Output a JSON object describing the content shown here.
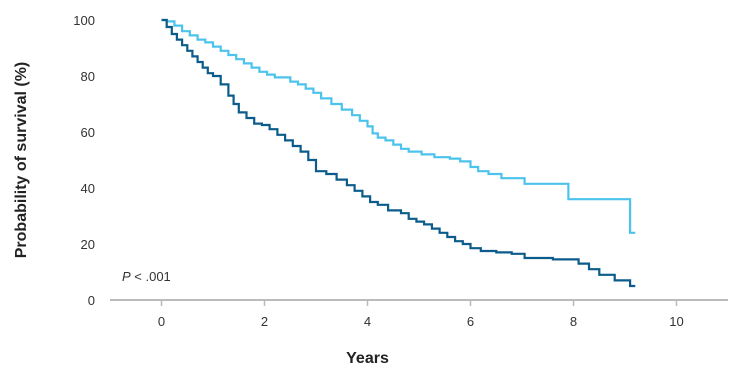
{
  "chart_data": {
    "type": "line",
    "xlabel": "Years",
    "ylabel": "Probability of survival (%)",
    "xlim": [
      -1,
      11
    ],
    "ylim": [
      0,
      100
    ],
    "x_ticks": [
      0,
      2,
      4,
      6,
      8,
      10
    ],
    "y_ticks": [
      0,
      20,
      40,
      60,
      80,
      100
    ],
    "x_tick_labels": [
      "0",
      "2",
      "4",
      "6",
      "8",
      "10"
    ],
    "y_tick_labels": [
      "0",
      "20",
      "40",
      "60",
      "80",
      "100"
    ],
    "grid": false,
    "annotation": {
      "prefix": "P",
      "text": " < .001"
    },
    "colors": {
      "light": "#4cc3ec",
      "dark": "#0b5c8a",
      "axis": "#bbbbbb"
    },
    "series": [
      {
        "color": "#4cc3ec",
        "x": [
          0,
          0.1,
          0.25,
          0.4,
          0.55,
          0.7,
          0.85,
          1.0,
          1.15,
          1.3,
          1.45,
          1.6,
          1.75,
          1.9,
          2.05,
          2.2,
          2.5,
          2.65,
          2.8,
          2.95,
          3.1,
          3.3,
          3.5,
          3.7,
          3.85,
          4.0,
          4.1,
          4.2,
          4.35,
          4.5,
          4.65,
          4.8,
          5.05,
          5.3,
          5.6,
          5.8,
          6.0,
          6.15,
          6.35,
          6.6,
          7.05,
          7.9,
          8.2,
          8.55,
          9.1,
          9.2
        ],
        "y": [
          100,
          99.5,
          98,
          96,
          94.5,
          93,
          92,
          90.5,
          89,
          87.5,
          86,
          84.5,
          83,
          81.5,
          80.5,
          79.5,
          78,
          77,
          75.5,
          74,
          72,
          70,
          68,
          66,
          64,
          62,
          59.5,
          58,
          57,
          55.5,
          54,
          53,
          52,
          51,
          50.5,
          49.5,
          47.5,
          46,
          45,
          43.5,
          41.5,
          36,
          36,
          36,
          24,
          24
        ]
      },
      {
        "color": "#0b5c8a",
        "x": [
          0,
          0.1,
          0.2,
          0.3,
          0.4,
          0.5,
          0.6,
          0.7,
          0.8,
          0.9,
          1.0,
          1.15,
          1.3,
          1.4,
          1.5,
          1.65,
          1.8,
          1.95,
          2.1,
          2.25,
          2.4,
          2.55,
          2.7,
          2.85,
          3.0,
          3.2,
          3.4,
          3.6,
          3.75,
          3.9,
          4.05,
          4.2,
          4.4,
          4.65,
          4.8,
          4.95,
          5.1,
          5.25,
          5.4,
          5.55,
          5.7,
          5.85,
          6.0,
          6.2,
          6.5,
          6.8,
          7.05,
          7.6,
          8.1,
          8.3,
          8.5,
          8.8,
          9.1,
          9.2
        ],
        "y": [
          100,
          97.5,
          95,
          93,
          91,
          89,
          87,
          85,
          83,
          81,
          80,
          77,
          73,
          70,
          67,
          65,
          63,
          62.5,
          61,
          59,
          57,
          55,
          53,
          50,
          46,
          45,
          43,
          41,
          39,
          37,
          35,
          34,
          32,
          31,
          29,
          28,
          27,
          25.5,
          24,
          22.5,
          21,
          20,
          18.5,
          17.5,
          17,
          16.5,
          15,
          14.5,
          13,
          11,
          9,
          7,
          5,
          5
        ]
      }
    ]
  }
}
